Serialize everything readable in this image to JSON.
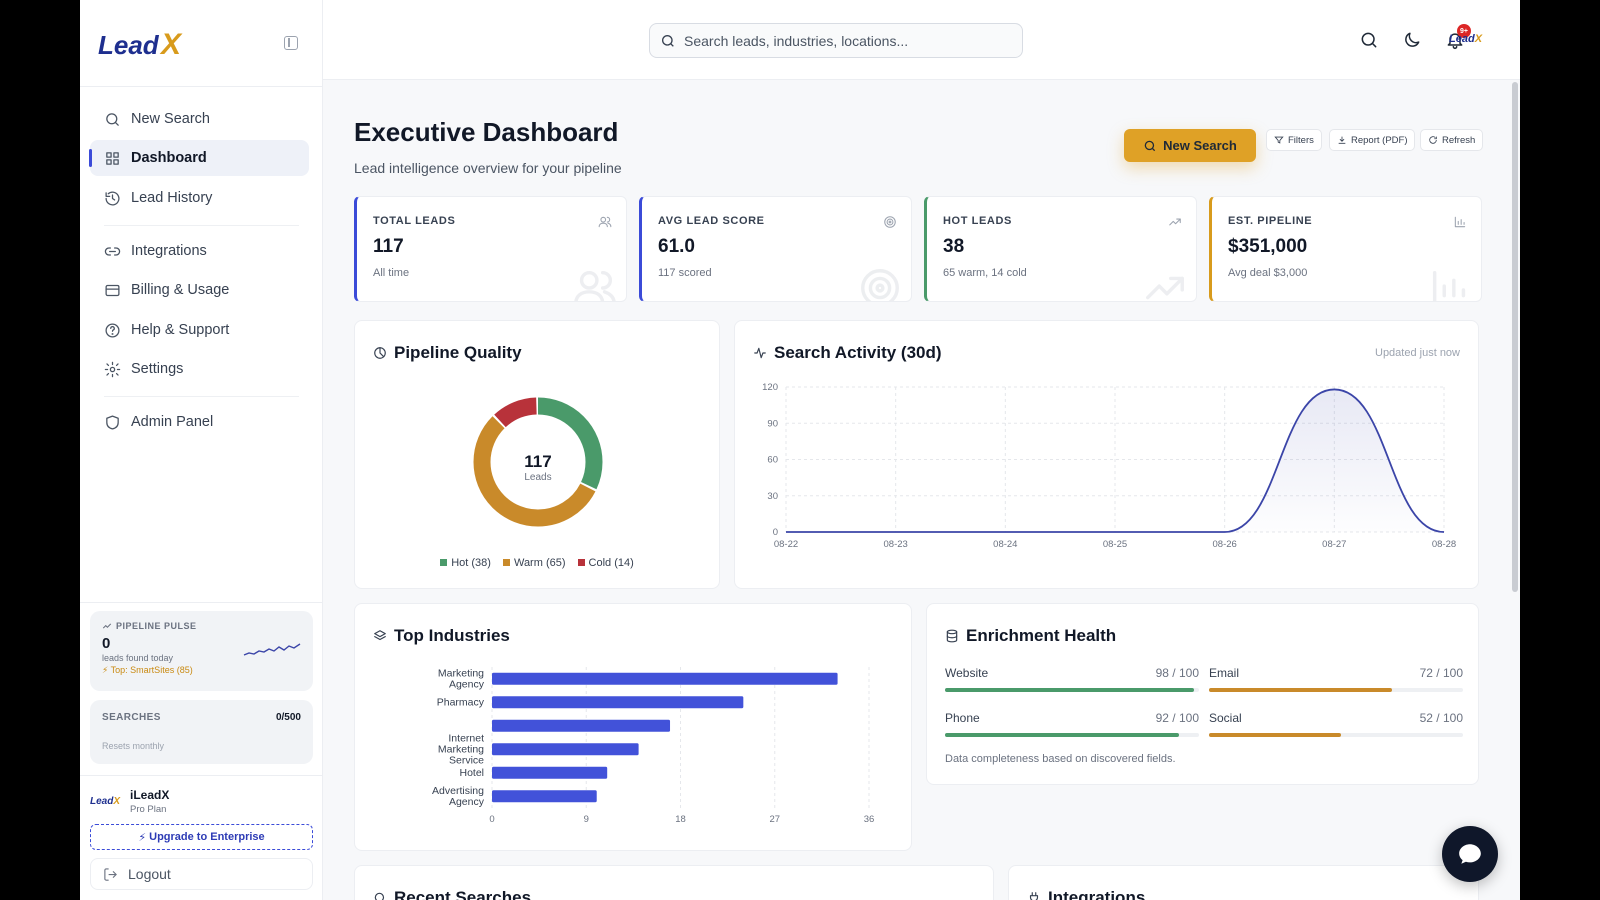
{
  "brand": {
    "name_main": "Lead",
    "name_accent": "X"
  },
  "search": {
    "placeholder": "Search leads, industries, locations..."
  },
  "notifications": {
    "badge": "9+"
  },
  "sidebar": {
    "items": [
      {
        "label": "New Search",
        "icon": "search-icon"
      },
      {
        "label": "Dashboard",
        "icon": "grid-icon",
        "active": true
      },
      {
        "label": "Lead History",
        "icon": "history-icon"
      },
      {
        "label": "Integrations",
        "icon": "link-icon"
      },
      {
        "label": "Billing & Usage",
        "icon": "card-icon"
      },
      {
        "label": "Help & Support",
        "icon": "help-icon"
      },
      {
        "label": "Settings",
        "icon": "gear-icon"
      },
      {
        "label": "Admin Panel",
        "icon": "shield-icon"
      }
    ],
    "pulse": {
      "title": "PIPELINE PULSE",
      "value": "0",
      "sub": "leads found today",
      "top": "Top: SmartSites (85)"
    },
    "searches": {
      "label": "SEARCHES",
      "value": "0/500",
      "sub": "Resets monthly"
    },
    "user": {
      "name": "iLeadX",
      "plan": "Pro Plan"
    },
    "upgrade_label": "Upgrade to Enterprise",
    "logout_label": "Logout"
  },
  "page": {
    "title": "Executive Dashboard",
    "subtitle": "Lead intelligence overview for your pipeline",
    "actions": {
      "new_search": "New Search",
      "filters": "Filters",
      "report": "Report (PDF)",
      "refresh": "Refresh"
    }
  },
  "kpis": [
    {
      "label": "TOTAL LEADS",
      "value": "117",
      "sub": "All time",
      "color": "#3b4bd8",
      "icon": "users-icon"
    },
    {
      "label": "AVG LEAD SCORE",
      "value": "61.0",
      "sub": "117 scored",
      "color": "#3b4bd8",
      "icon": "target-icon"
    },
    {
      "label": "HOT LEADS",
      "value": "38",
      "sub": "65 warm, 14 cold",
      "color": "#4a9a6a",
      "icon": "trend-icon"
    },
    {
      "label": "EST. PIPELINE",
      "value": "$351,000",
      "sub": "Avg deal $3,000",
      "color": "#d89b1c",
      "icon": "bar-icon"
    }
  ],
  "pipeline_quality": {
    "title": "Pipeline Quality",
    "center_value": "117",
    "center_label": "Leads",
    "legend": [
      "Hot (38)",
      "Warm (65)",
      "Cold (14)"
    ]
  },
  "search_activity": {
    "title": "Search Activity (30d)",
    "updated": "Updated just now"
  },
  "top_industries": {
    "title": "Top Industries"
  },
  "enrichment": {
    "title": "Enrichment Health",
    "metrics": [
      {
        "label": "Website",
        "value": "98 / 100",
        "score": 98,
        "color": "#4a9a6a"
      },
      {
        "label": "Email",
        "value": "72 / 100",
        "score": 72,
        "color": "#c98a2a"
      },
      {
        "label": "Phone",
        "value": "92 / 100",
        "score": 92,
        "color": "#4a9a6a"
      },
      {
        "label": "Social",
        "value": "52 / 100",
        "score": 52,
        "color": "#c98a2a"
      }
    ],
    "note": "Data completeness based on discovered fields."
  },
  "bottom_cards": {
    "recent_title": "Recent Searches",
    "integrations_title": "Integrations"
  },
  "chart_data": [
    {
      "type": "pie",
      "categories": [
        "Hot",
        "Warm",
        "Cold"
      ],
      "values": [
        38,
        65,
        14
      ],
      "colors": [
        "#4a9a6a",
        "#c98a2a",
        "#b8323a"
      ]
    },
    {
      "type": "area",
      "x": [
        "08-22",
        "08-23",
        "08-24",
        "08-25",
        "08-26",
        "08-27",
        "08-28"
      ],
      "y": [
        0,
        0,
        0,
        0,
        0,
        118,
        0
      ],
      "yticks": [
        0,
        30,
        60,
        90,
        120
      ],
      "ylim": [
        0,
        120
      ],
      "color": "#3b45a8"
    },
    {
      "type": "bar",
      "orientation": "horizontal",
      "categories": [
        [
          "Marketing",
          "Agency"
        ],
        [
          "Pharmacy"
        ],
        [
          ""
        ],
        [
          "Internet",
          "Marketing",
          "Service"
        ],
        [
          "Hotel"
        ],
        [
          "Advertising",
          "Agency"
        ]
      ],
      "values": [
        33,
        24,
        17,
        14,
        11,
        10
      ],
      "xticks": [
        0,
        9,
        18,
        27,
        36
      ],
      "xlim": [
        0,
        36
      ],
      "color": "#4252d9"
    }
  ]
}
